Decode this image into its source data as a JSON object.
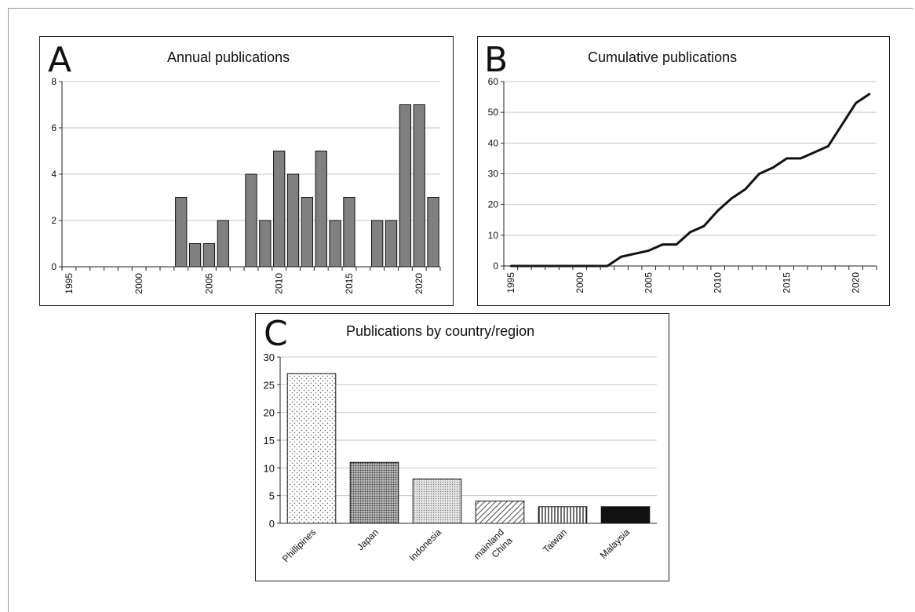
{
  "chart_data": [
    {
      "panel_label": "A",
      "type": "bar",
      "title": "Annual publications",
      "x": [
        1995,
        1996,
        1997,
        1998,
        1999,
        2000,
        2001,
        2002,
        2003,
        2004,
        2005,
        2006,
        2007,
        2008,
        2009,
        2010,
        2011,
        2012,
        2013,
        2014,
        2015,
        2016,
        2017,
        2018,
        2019,
        2020,
        2021
      ],
      "values": [
        0,
        0,
        0,
        0,
        0,
        0,
        0,
        0,
        3,
        1,
        1,
        2,
        0,
        4,
        2,
        5,
        4,
        3,
        5,
        2,
        3,
        0,
        2,
        2,
        7,
        7,
        3
      ],
      "x_tick_labels": [
        "1995",
        "2000",
        "2005",
        "2010",
        "2015",
        "2020"
      ],
      "y_ticks": [
        0,
        2,
        4,
        6,
        8
      ],
      "ylim": [
        0,
        8
      ],
      "grid": "horizontal",
      "bar_color": "#808080"
    },
    {
      "panel_label": "B",
      "type": "line",
      "title": "Cumulative publications",
      "x": [
        1995,
        1996,
        1997,
        1998,
        1999,
        2000,
        2001,
        2002,
        2003,
        2004,
        2005,
        2006,
        2007,
        2008,
        2009,
        2010,
        2011,
        2012,
        2013,
        2014,
        2015,
        2016,
        2017,
        2018,
        2019,
        2020,
        2021
      ],
      "values": [
        0,
        0,
        0,
        0,
        0,
        0,
        0,
        0,
        3,
        4,
        5,
        7,
        7,
        11,
        13,
        18,
        22,
        25,
        30,
        32,
        35,
        35,
        37,
        39,
        46,
        53,
        56
      ],
      "x_tick_labels": [
        "1995",
        "2000",
        "2005",
        "2010",
        "2015",
        "2020"
      ],
      "y_ticks": [
        0,
        10,
        20,
        30,
        40,
        50,
        60
      ],
      "ylim": [
        0,
        60
      ],
      "grid": "horizontal",
      "line_color": "#111111"
    },
    {
      "panel_label": "C",
      "type": "bar",
      "title": "Publications by country/region",
      "categories": [
        "Phillipines",
        "Japan",
        "Indonesia",
        "mainland China",
        "Taiwan",
        "Malaysia"
      ],
      "category_lines": [
        [
          "Phillipines"
        ],
        [
          "Japan"
        ],
        [
          "Indonesia"
        ],
        [
          "mainland",
          "China"
        ],
        [
          "Taiwan"
        ],
        [
          "Malaysia"
        ]
      ],
      "values": [
        27,
        11,
        8,
        4,
        3,
        3
      ],
      "patterns": [
        "dots",
        "dense-dots",
        "fine-dots",
        "diagonal",
        "vertical",
        "solid"
      ],
      "y_ticks": [
        0,
        5,
        10,
        15,
        20,
        25,
        30
      ],
      "ylim": [
        0,
        30
      ],
      "grid": "horizontal"
    }
  ]
}
